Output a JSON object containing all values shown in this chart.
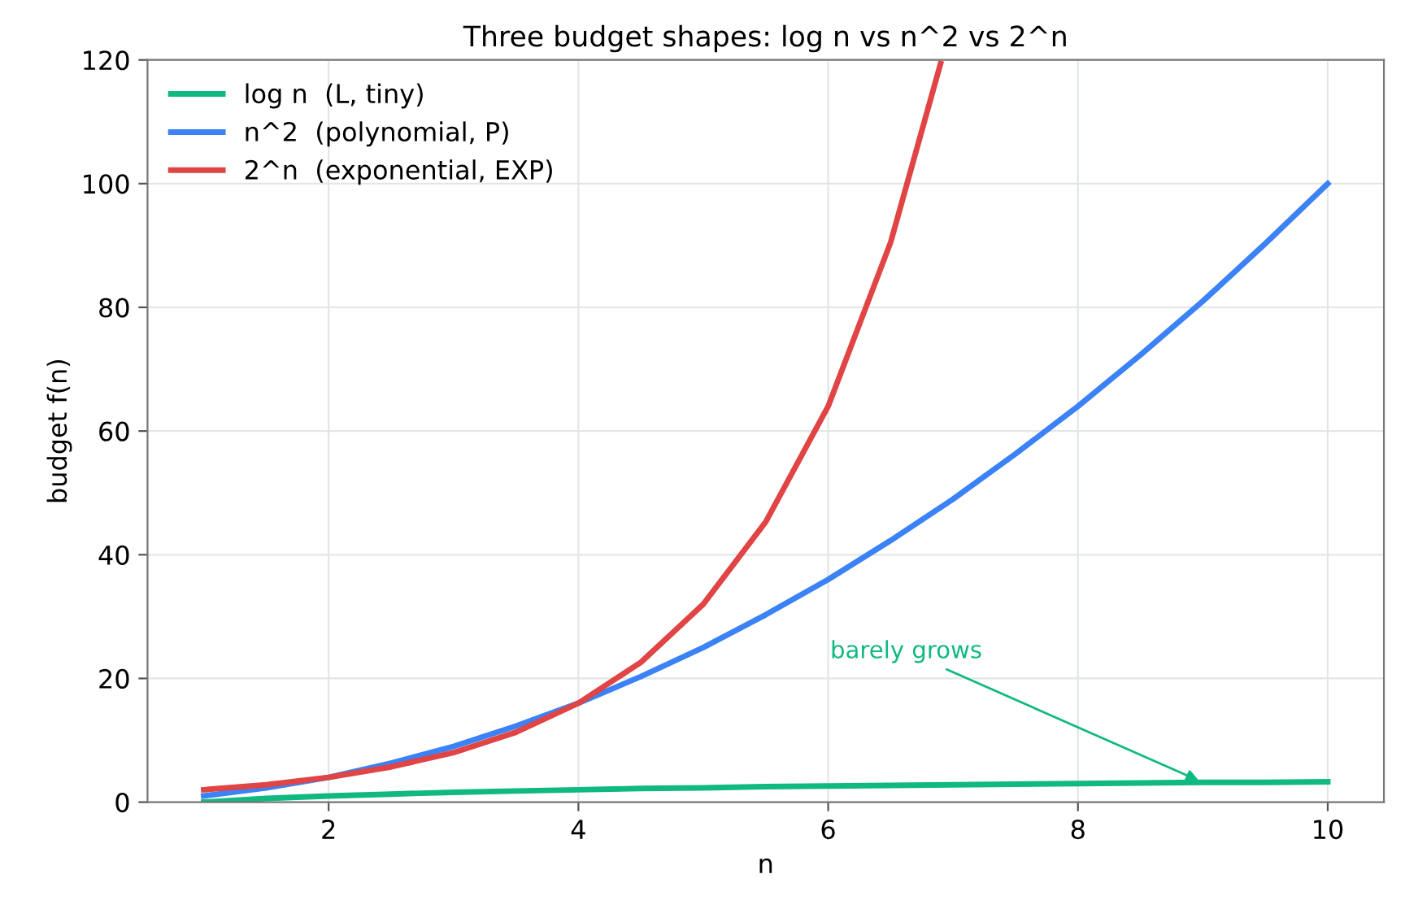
{
  "chart_data": {
    "type": "line",
    "title": "Three budget shapes: log n vs n^2 vs 2^n",
    "xlabel": "n",
    "ylabel": "budget f(n)",
    "series": [
      {
        "name": "log n  (L, tiny)",
        "color": "#10b981",
        "x": [
          1,
          1.5,
          2,
          2.5,
          3,
          3.5,
          4,
          4.5,
          5,
          5.5,
          6,
          6.5,
          7,
          7.5,
          8,
          8.5,
          9,
          9.5,
          10
        ],
        "values": [
          0,
          0.6,
          1,
          1.3,
          1.6,
          1.8,
          2,
          2.2,
          2.3,
          2.5,
          2.6,
          2.7,
          2.8,
          2.9,
          3,
          3.1,
          3.2,
          3.2,
          3.3
        ]
      },
      {
        "name": "n^2  (polynomial, P)",
        "color": "#3b82f6",
        "x": [
          1,
          1.5,
          2,
          2.5,
          3,
          3.5,
          4,
          4.5,
          5,
          5.5,
          6,
          6.5,
          7,
          7.5,
          8,
          8.5,
          9,
          9.5,
          10
        ],
        "values": [
          1,
          2.3,
          4,
          6.3,
          9,
          12.3,
          16,
          20.3,
          25,
          30.3,
          36,
          42.3,
          49,
          56.3,
          64,
          72.3,
          81,
          90.3,
          100
        ]
      },
      {
        "name": "2^n  (exponential, EXP)",
        "color": "#e04444",
        "x": [
          1,
          1.5,
          2,
          2.5,
          3,
          3.5,
          4,
          4.5,
          5,
          5.5,
          6,
          6.5,
          6.9
        ],
        "values": [
          2,
          2.8,
          4,
          5.7,
          8,
          11.3,
          16,
          22.6,
          32,
          45.3,
          64,
          90.5,
          119.4
        ]
      }
    ],
    "xlim": [
      0.55,
      10.45
    ],
    "xticks": [
      2,
      4,
      6,
      8,
      10
    ],
    "ylim": [
      0,
      120
    ],
    "yticks": [
      0,
      20,
      40,
      60,
      80,
      100,
      120
    ],
    "grid": true,
    "legend": "top left",
    "marker": "none",
    "line_style": "solid",
    "annotations": [
      {
        "text": "barely grows",
        "x": 9,
        "y": 3.2
      }
    ]
  }
}
